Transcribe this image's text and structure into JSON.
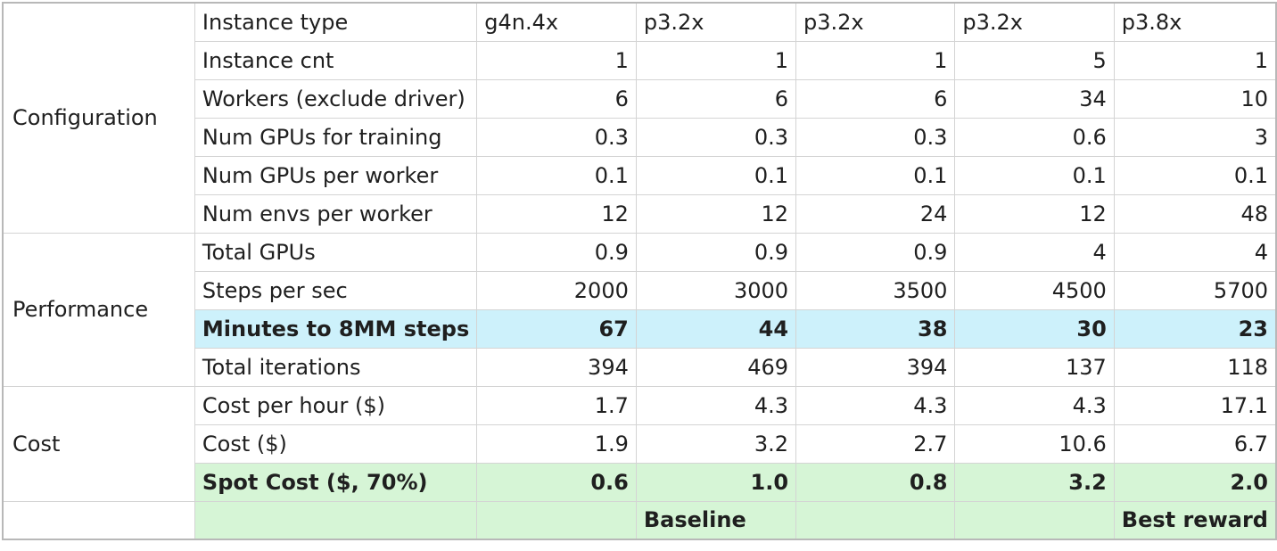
{
  "header": {
    "label": "Instance type",
    "columns": [
      "g4n.4x",
      "p3.2x",
      "p3.2x",
      "p3.2x",
      "p3.8x"
    ]
  },
  "groups": {
    "configuration": "Configuration",
    "performance": "Performance",
    "cost": "Cost"
  },
  "rows": [
    {
      "label": "Instance cnt",
      "values": [
        "1",
        "1",
        "1",
        "5",
        "1"
      ]
    },
    {
      "label": "Workers (exclude driver)",
      "values": [
        "6",
        "6",
        "6",
        "34",
        "10"
      ]
    },
    {
      "label": "Num GPUs for training",
      "values": [
        "0.3",
        "0.3",
        "0.3",
        "0.6",
        "3"
      ]
    },
    {
      "label": "Num GPUs per worker",
      "values": [
        "0.1",
        "0.1",
        "0.1",
        "0.1",
        "0.1"
      ]
    },
    {
      "label": "Num envs per worker",
      "values": [
        "12",
        "12",
        "24",
        "12",
        "48"
      ]
    },
    {
      "label": "Total GPUs",
      "values": [
        "0.9",
        "0.9",
        "0.9",
        "4",
        "4"
      ]
    },
    {
      "label": "Steps per sec",
      "values": [
        "2000",
        "3000",
        "3500",
        "4500",
        "5700"
      ]
    },
    {
      "label": "Minutes to 8MM steps",
      "values": [
        "67",
        "44",
        "38",
        "30",
        "23"
      ]
    },
    {
      "label": "Total iterations",
      "values": [
        "394",
        "469",
        "394",
        "137",
        "118"
      ]
    },
    {
      "label": "Cost per hour ($)",
      "values": [
        "1.7",
        "4.3",
        "4.3",
        "4.3",
        "17.1"
      ]
    },
    {
      "label": "Cost ($)",
      "values": [
        "1.9",
        "3.2",
        "2.7",
        "10.6",
        "6.7"
      ]
    },
    {
      "label": "Spot Cost ($, 70%)",
      "values": [
        "0.6",
        "1.0",
        "0.8",
        "3.2",
        "2.0"
      ]
    }
  ],
  "footer": {
    "values": [
      "",
      "Baseline",
      "",
      "",
      "Best reward"
    ]
  },
  "colors": {
    "highlight_blue": "#cdf1fb",
    "highlight_green": "#d6f5d6",
    "border": "#d4d4d4"
  }
}
